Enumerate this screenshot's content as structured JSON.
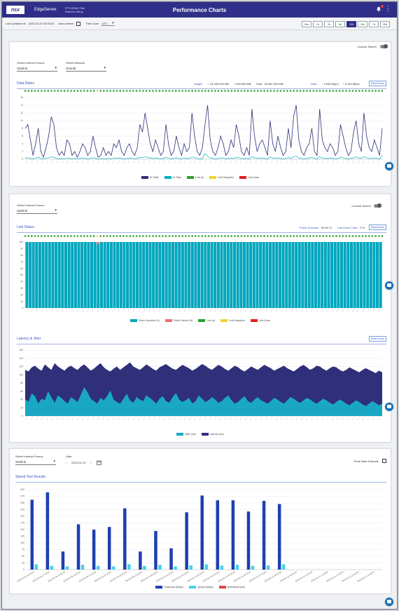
{
  "header": {
    "logo_text": "nsx",
    "brand": "EdgeServer",
    "site_line1": "FFF-DEMO Site",
    "site_line2": "StarLink Setup",
    "title": "Performance Charts"
  },
  "toolbar": {
    "last_updated_label": "Last Updated at:",
    "last_updated_value": "2023-02-10 16:54:02",
    "auto_refresh_label": "Auto-refresh",
    "timezone_label": "Time Zone",
    "timezone_value": "UTC",
    "ranges": [
      "15m",
      "1h",
      "2h",
      "6h",
      "12h",
      "24h",
      "7d",
      "30d"
    ],
    "active_range": "12h"
  },
  "data_rates_card": {
    "custom_search_label": "Custom Search",
    "internet_source_label": "Select Internet Source",
    "internet_source_value": "Starlink",
    "network_label": "Select Network",
    "network_value": "Overall",
    "section_title": "Data Rates",
    "usage_label": "Usage:",
    "usage_down": "↓ 15,283,693 MB",
    "usage_up": "↑ 998,633 MB",
    "usage_total": "Total : 16,282,326 MB",
    "rate_label": "Rate:",
    "rate_down": "↓ 2.966 Mbps",
    "rate_up": "↑ 0.184 Mbps",
    "reset_zoom": "Reset Zoom",
    "legend": [
      {
        "label": "DL Rate",
        "color": "#2f2f7a"
      },
      {
        "label": "UL Rate",
        "color": "#00b2c4"
      },
      {
        "label": "Link Up",
        "color": "#2ca02c"
      },
      {
        "label": "Link Degraded",
        "color": "#f2d32b"
      },
      {
        "label": "Link Down",
        "color": "#e02020"
      }
    ]
  },
  "link_card": {
    "internet_source_label": "Select Internet Source",
    "internet_source_value": "Starlink",
    "custom_search_label": "Custom Search",
    "section_title": "Link Status",
    "probe_success_label": "Probe Success:",
    "probe_success_value": "99.94 %",
    "link_down_label": "Link Down Time:",
    "link_down_value": "0 %",
    "reset_zoom": "Reset Zoom",
    "legend": [
      {
        "label": "Probe Success (%)",
        "color": "#00a6bd"
      },
      {
        "label": "Probe Failure (%)",
        "color": "#f07070"
      },
      {
        "label": "Link Up",
        "color": "#2ca02c"
      },
      {
        "label": "Link Degraded",
        "color": "#f2d32b"
      },
      {
        "label": "Link Down",
        "color": "#e02020"
      }
    ],
    "latency_title": "Latency & Jitter",
    "latency_reset": "Reset Zoom",
    "latency_legend": [
      {
        "label": "Jitter (ms)",
        "color": "#1aa7c4"
      },
      {
        "label": "Latency (ms)",
        "color": "#2f2f7a"
      }
    ]
  },
  "speed_card": {
    "internet_source_label": "Select Internet Source",
    "internet_source_value": "Starlink",
    "date_label": "Date",
    "date_value": "2023-02-10",
    "peak_rate_label": "Peak Rate Estimate",
    "section_title": "Speed Test Results",
    "legend": [
      {
        "label": "Download (Mbps)",
        "color": "#1f3fb0"
      },
      {
        "label": "Upload (Mbps)",
        "color": "#46d0e8"
      },
      {
        "label": "Bufferbloat (ms)",
        "color": "#e04848"
      }
    ]
  },
  "chart_data": [
    {
      "type": "line",
      "title": "Data Rates",
      "ylim": [
        0,
        16
      ],
      "yticks": [
        0,
        2,
        4,
        6,
        8,
        10,
        12,
        14,
        16
      ],
      "series": [
        {
          "name": "DL Rate",
          "values": [
            8,
            9,
            5,
            1,
            4,
            8,
            2,
            0.5,
            3,
            6,
            11,
            9,
            3,
            1,
            2,
            1,
            5,
            4,
            1,
            2,
            0.5,
            2,
            4,
            3,
            1,
            2,
            6,
            3,
            0.5,
            1,
            3,
            1,
            2,
            1,
            4,
            3,
            5,
            2,
            1,
            3,
            4,
            2,
            1,
            3,
            9,
            7,
            12,
            8,
            4,
            2,
            5,
            3,
            1,
            2,
            9,
            4,
            1,
            2,
            6,
            3,
            1,
            4,
            2,
            3,
            12,
            6,
            2,
            1,
            3,
            9,
            14,
            5,
            2,
            1,
            3,
            6,
            4,
            1,
            2,
            5,
            3,
            9,
            6,
            2,
            1,
            3,
            1,
            13,
            6,
            2,
            4,
            5,
            3,
            1,
            10,
            4,
            2,
            6,
            3,
            1,
            2,
            8,
            3,
            11,
            14,
            5,
            2,
            1,
            3,
            4,
            8,
            2,
            1,
            13,
            5,
            3,
            2,
            4,
            3,
            1,
            2,
            9,
            6,
            3,
            1,
            2,
            7,
            10,
            4,
            2,
            12,
            6,
            3,
            2,
            5,
            3,
            1,
            8
          ]
        },
        {
          "name": "UL Rate",
          "values": [
            0.3,
            0.4,
            0.2,
            0.1,
            0.3,
            0.5,
            0.2,
            0.1,
            0.3,
            0.4,
            0.6,
            0.5,
            0.2,
            0.1,
            0.2,
            0.1,
            0.3,
            0.2,
            0.1,
            0.2,
            0.1,
            0.2,
            0.3,
            0.2,
            0.1,
            0.2,
            0.4,
            0.2,
            0.1,
            0.1,
            0.2,
            0.1,
            0.2,
            0.1,
            0.3,
            0.2,
            0.3,
            0.2,
            0.1,
            0.2,
            0.3,
            0.2,
            0.1,
            0.2,
            0.5,
            0.4,
            0.6,
            0.5,
            0.3,
            0.2,
            0.3,
            0.2,
            0.1,
            0.2,
            0.5,
            0.3,
            0.1,
            0.2,
            0.4,
            0.2,
            0.1,
            0.3,
            0.2,
            0.2,
            0.6,
            0.4,
            0.2,
            0.1,
            0.2,
            1.5,
            0.8,
            0.3,
            0.2,
            0.1,
            0.2,
            0.4,
            0.3,
            0.1,
            0.2,
            0.3,
            0.2,
            0.5,
            0.4,
            0.2,
            0.1,
            0.2,
            0.1,
            0.7,
            0.4,
            0.2,
            0.3,
            0.3,
            0.2,
            0.1,
            0.6,
            0.3,
            0.2,
            0.4,
            0.2,
            0.1,
            0.2,
            0.5,
            0.2,
            0.6,
            0.8,
            0.3,
            0.2,
            0.1,
            0.2,
            0.3,
            0.5,
            0.2,
            0.1,
            0.7,
            0.3,
            0.2,
            0.2,
            0.3,
            0.2,
            0.1,
            0.2,
            0.5,
            0.4,
            0.2,
            0.1,
            0.2,
            0.4,
            0.6,
            0.3,
            0.2,
            0.7,
            0.4,
            0.2,
            0.2,
            0.3,
            0.2,
            0.1,
            1.0
          ]
        }
      ],
      "link_status_markers": {
        "count": 110,
        "degraded_index": 22
      }
    },
    {
      "type": "bar",
      "title": "Link Status",
      "ylim": [
        0,
        100
      ],
      "yticks": [
        0,
        10,
        20,
        30,
        40,
        50,
        60,
        70,
        80,
        90,
        100
      ],
      "bar_count": 110,
      "probe_success_value": 100,
      "failure_index": 22,
      "failure_value": 3
    },
    {
      "type": "area",
      "title": "Latency & Jitter",
      "ylim": [
        0,
        160
      ],
      "yticks": [
        0,
        20,
        40,
        60,
        80,
        100,
        120,
        140,
        160
      ],
      "series": [
        {
          "name": "Latency (ms)",
          "values": [
            112,
            108,
            118,
            122,
            115,
            110,
            125,
            118,
            112,
            128,
            120,
            115,
            110,
            118,
            122,
            116,
            112,
            120,
            125,
            118,
            110,
            115,
            122,
            128,
            118,
            112,
            108,
            115,
            120,
            112,
            118,
            124,
            130,
            120,
            116,
            112,
            118,
            125,
            120,
            114,
            110,
            118,
            122,
            126,
            120,
            115,
            112,
            118,
            124,
            120,
            116,
            110,
            114,
            120,
            126,
            122,
            116,
            112,
            118,
            124,
            120,
            114,
            110,
            116,
            122,
            118,
            112,
            108,
            114,
            120,
            116,
            112,
            118,
            124,
            120,
            116,
            110,
            114,
            118,
            122,
            116,
            112,
            108,
            114,
            120,
            124,
            118,
            112,
            116,
            122,
            120,
            114,
            110,
            116,
            120,
            118,
            112,
            108,
            112,
            118,
            114,
            110,
            106,
            112,
            116,
            112,
            108,
            104,
            110,
            106
          ]
        },
        {
          "name": "Jitter (ms)",
          "values": [
            40,
            35,
            55,
            48,
            30,
            42,
            38,
            60,
            45,
            32,
            50,
            44,
            36,
            30,
            46,
            40,
            34,
            52,
            70,
            58,
            42,
            36,
            30,
            44,
            38,
            48,
            62,
            40,
            34,
            30,
            42,
            54,
            38,
            32,
            46,
            40,
            36,
            50,
            44,
            38,
            30,
            42,
            48,
            36,
            32,
            46,
            56,
            40,
            34,
            38,
            44,
            30,
            36,
            50,
            42,
            34,
            38,
            46,
            40,
            32,
            36,
            44,
            50,
            38,
            30,
            34,
            42,
            48,
            36,
            32,
            40,
            46,
            38,
            34,
            30,
            36,
            44,
            40,
            34,
            30,
            38,
            46,
            42,
            36,
            32,
            38,
            44,
            40,
            34,
            30,
            36,
            42,
            38,
            32,
            28,
            34,
            40,
            36,
            30,
            26,
            32,
            38,
            34,
            28,
            24,
            30,
            36,
            32,
            26,
            30
          ]
        }
      ]
    },
    {
      "type": "bar",
      "title": "Speed Test Results",
      "ylim": [
        0,
        300
      ],
      "yticks": [
        0,
        25,
        50,
        75,
        100,
        125,
        150,
        175,
        200,
        225,
        250,
        275,
        300
      ],
      "categories": [
        "2023-02-09 16:00:00",
        "2023-02-09 17:00:00",
        "2023-02-09 18:00:00",
        "2023-02-09 19:00:00",
        "2023-02-09 20:00:00",
        "2023-02-09 21:00:00",
        "2023-02-09 22:00:00",
        "2023-02-09 23:00:00",
        "2023-02-10 00:00:00",
        "2023-02-10 01:00:00",
        "2023-02-10 02:00:00",
        "2023-02-10 03:00:00",
        "2023-02-10 04:00:00",
        "2023-02-10 05:00:00",
        "2023-02-10 06:00:00",
        "2023-02-10 07:00:00",
        "2023-02-10 08:00:00",
        "2023-02-10 09:00:00",
        "2023-02-10 10:00:00",
        "2023-02-10 11:00:00",
        "2023-02-10 12:00:00",
        "2023-02-10 13:00:00",
        "2023-02-10 14:00:00"
      ],
      "series": [
        {
          "name": "Download (Mbps)",
          "values": [
            262,
            290,
            68,
            170,
            150,
            160,
            230,
            68,
            145,
            80,
            215,
            278,
            260,
            260,
            218,
            258,
            246,
            0,
            0,
            0,
            0,
            0,
            0
          ]
        },
        {
          "name": "Upload (Mbps)",
          "values": [
            20,
            14,
            12,
            18,
            14,
            12,
            20,
            14,
            18,
            12,
            16,
            20,
            15,
            18,
            14,
            16,
            20,
            0,
            0,
            0,
            0,
            0,
            0
          ]
        }
      ]
    }
  ]
}
